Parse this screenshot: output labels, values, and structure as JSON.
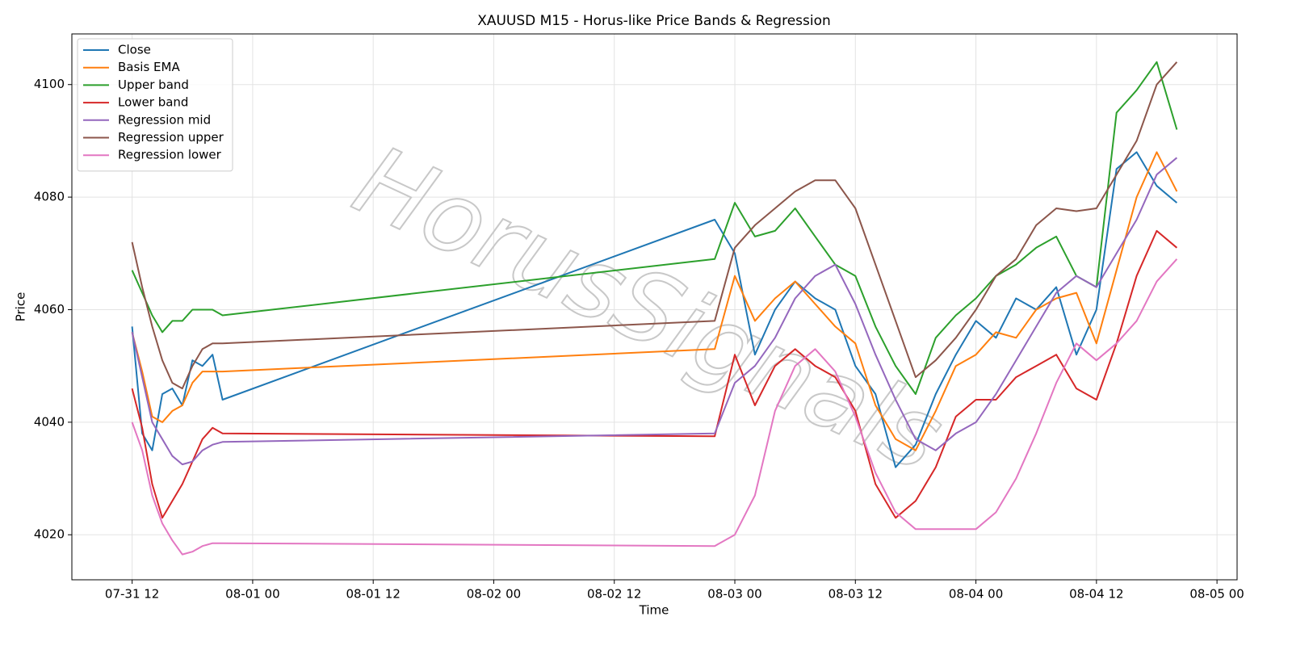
{
  "chart_data": {
    "type": "line",
    "title": "XAUUSD M15 - Horus-like Price Bands & Regression",
    "x_label": "Time",
    "y_label": "Price",
    "watermark": "HorusSignals",
    "grid": true,
    "legend": "upper left",
    "xlim": [
      "07-31 06",
      "08-05 02"
    ],
    "xticks": [
      "07-31 12",
      "08-01 00",
      "08-01 12",
      "08-02 00",
      "08-02 12",
      "08-03 00",
      "08-03 12",
      "08-04 00",
      "08-04 12",
      "08-05 00"
    ],
    "ylim": [
      4012,
      4109
    ],
    "yticks": [
      4020,
      4040,
      4060,
      4080,
      4100
    ],
    "x": [
      "07-31 12",
      "07-31 13",
      "07-31 14",
      "07-31 15",
      "07-31 16",
      "07-31 17",
      "07-31 18",
      "07-31 19",
      "07-31 20",
      "07-31 21",
      "08-02 22",
      "08-03 00",
      "08-03 02",
      "08-03 04",
      "08-03 06",
      "08-03 08",
      "08-03 10",
      "08-03 12",
      "08-03 14",
      "08-03 16",
      "08-03 18",
      "08-03 20",
      "08-03 22",
      "08-04 00",
      "08-04 02",
      "08-04 04",
      "08-04 06",
      "08-04 08",
      "08-04 10",
      "08-04 12",
      "08-04 14",
      "08-04 16",
      "08-04 18",
      "08-04 20"
    ],
    "series": [
      {
        "name": "Close",
        "color": "#1f77b4",
        "values": [
          4057,
          4038,
          4035,
          4045,
          4046,
          4043,
          4051,
          4050,
          4052,
          4044,
          4076,
          4070,
          4052,
          4060,
          4065,
          4062,
          4060,
          4050,
          4045,
          4032,
          4036,
          4045,
          4052,
          4058,
          4055,
          4062,
          4060,
          4064,
          4052,
          4060,
          4085,
          4088,
          4082,
          4079
        ]
      },
      {
        "name": "Basis EMA",
        "color": "#ff7f0e",
        "values": [
          4056,
          4049,
          4041,
          4040,
          4042,
          4043,
          4047,
          4049,
          4049,
          4049,
          4053,
          4066,
          4058,
          4062,
          4065,
          4061,
          4057,
          4054,
          4043,
          4037,
          4035,
          4042,
          4050,
          4052,
          4056,
          4055,
          4060,
          4062,
          4063,
          4054,
          4067,
          4080,
          4088,
          4081
        ]
      },
      {
        "name": "Upper band",
        "color": "#2ca02c",
        "values": [
          4067,
          4063,
          4059,
          4056,
          4058,
          4058,
          4060,
          4060,
          4060,
          4059,
          4069,
          4079,
          4073,
          4074,
          4078,
          4073,
          4068,
          4066,
          4057,
          4050,
          4045,
          4055,
          4059,
          4062,
          4066,
          4068,
          4071,
          4073,
          4066,
          4064,
          4095,
          4099,
          4104,
          4092
        ]
      },
      {
        "name": "Lower band",
        "color": "#d62728",
        "values": [
          4046,
          4039,
          4029,
          4023,
          4026,
          4029,
          4033,
          4037,
          4039,
          4038,
          4037.5,
          4052,
          4043,
          4050,
          4053,
          4050,
          4048,
          4042,
          4029,
          4023,
          4026,
          4032,
          4041,
          4044,
          4044,
          4048,
          4050,
          4052,
          4046,
          4044,
          4054,
          4066,
          4074,
          4071
        ]
      },
      {
        "name": "Regression mid",
        "color": "#9467bd",
        "values": [
          4056,
          4048,
          4040,
          4037,
          4034,
          4032.5,
          4033,
          4035,
          4036,
          4036.5,
          4038,
          4047,
          4050,
          4055,
          4062,
          4066,
          4068,
          4061,
          4052,
          4044,
          4037,
          4035,
          4038,
          4040,
          4045,
          4051,
          4057,
          4063,
          4066,
          4064,
          4070,
          4076,
          4084,
          4087
        ]
      },
      {
        "name": "Regression upper",
        "color": "#8c564b",
        "values": [
          4072,
          4064,
          4057,
          4051,
          4047,
          4046,
          4050,
          4053,
          4054,
          4054,
          4058,
          4071,
          4075,
          4078,
          4081,
          4083,
          4083,
          4078,
          4068,
          4058,
          4048,
          4051,
          4055,
          4060,
          4066,
          4069,
          4075,
          4078,
          4077.5,
          4078,
          4084,
          4090,
          4100,
          4104
        ]
      },
      {
        "name": "Regression lower",
        "color": "#e377c2",
        "values": [
          4040,
          4035,
          4027,
          4022,
          4019,
          4016.5,
          4017,
          4018,
          4018.5,
          4018.5,
          4018,
          4020,
          4027,
          4042,
          4050,
          4053,
          4049,
          4041,
          4031,
          4024,
          4021,
          4021,
          4021,
          4021,
          4024,
          4030,
          4038,
          4047,
          4054,
          4051,
          4054,
          4058,
          4065,
          4069
        ]
      }
    ]
  }
}
